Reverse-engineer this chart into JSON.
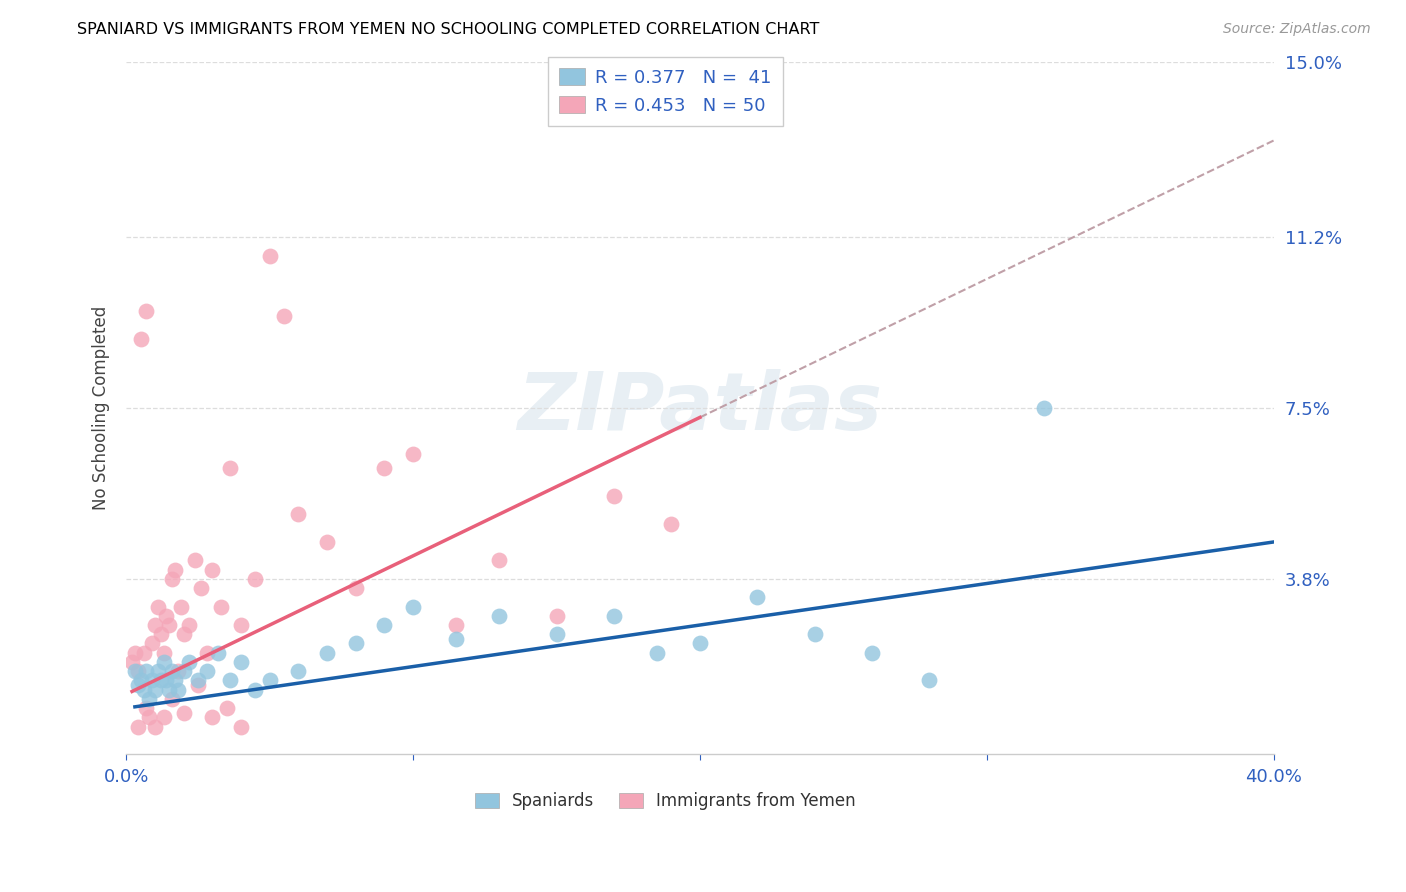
{
  "title": "SPANIARD VS IMMIGRANTS FROM YEMEN NO SCHOOLING COMPLETED CORRELATION CHART",
  "source": "Source: ZipAtlas.com",
  "ylabel": "No Schooling Completed",
  "xlim": [
    0.0,
    0.4
  ],
  "ylim": [
    0.0,
    0.15
  ],
  "ytick_vals": [
    0.038,
    0.075,
    0.112,
    0.15
  ],
  "ytick_labels": [
    "3.8%",
    "7.5%",
    "11.2%",
    "15.0%"
  ],
  "legend1_label": "R = 0.377   N =  41",
  "legend2_label": "R = 0.453   N = 50",
  "legend_bottom_label1": "Spaniards",
  "legend_bottom_label2": "Immigrants from Yemen",
  "blue_color": "#92c5de",
  "pink_color": "#f4a6b8",
  "blue_line_color": "#1a5fa8",
  "pink_line_color": "#e8607a",
  "dash_color": "#c0a0a8",
  "watermark": "ZIPatlas",
  "spaniards_x": [
    0.003,
    0.004,
    0.005,
    0.006,
    0.007,
    0.008,
    0.009,
    0.01,
    0.011,
    0.012,
    0.013,
    0.014,
    0.015,
    0.016,
    0.017,
    0.018,
    0.02,
    0.022,
    0.025,
    0.028,
    0.032,
    0.036,
    0.04,
    0.045,
    0.05,
    0.06,
    0.07,
    0.08,
    0.09,
    0.1,
    0.115,
    0.13,
    0.15,
    0.17,
    0.185,
    0.2,
    0.22,
    0.24,
    0.26,
    0.28,
    0.32
  ],
  "spaniards_y": [
    0.018,
    0.015,
    0.016,
    0.014,
    0.018,
    0.012,
    0.016,
    0.014,
    0.018,
    0.016,
    0.02,
    0.016,
    0.014,
    0.018,
    0.016,
    0.014,
    0.018,
    0.02,
    0.016,
    0.018,
    0.022,
    0.016,
    0.02,
    0.014,
    0.016,
    0.018,
    0.022,
    0.024,
    0.028,
    0.032,
    0.025,
    0.03,
    0.026,
    0.03,
    0.022,
    0.024,
    0.034,
    0.026,
    0.022,
    0.016,
    0.075
  ],
  "yemen_x": [
    0.002,
    0.003,
    0.004,
    0.005,
    0.006,
    0.007,
    0.008,
    0.009,
    0.01,
    0.011,
    0.012,
    0.013,
    0.014,
    0.015,
    0.016,
    0.017,
    0.018,
    0.019,
    0.02,
    0.022,
    0.024,
    0.026,
    0.028,
    0.03,
    0.033,
    0.036,
    0.04,
    0.045,
    0.05,
    0.055,
    0.06,
    0.07,
    0.08,
    0.09,
    0.1,
    0.115,
    0.13,
    0.15,
    0.17,
    0.19,
    0.004,
    0.007,
    0.01,
    0.013,
    0.016,
    0.02,
    0.025,
    0.03,
    0.035,
    0.04
  ],
  "yemen_y": [
    0.02,
    0.022,
    0.018,
    0.09,
    0.022,
    0.096,
    0.008,
    0.024,
    0.028,
    0.032,
    0.026,
    0.022,
    0.03,
    0.028,
    0.038,
    0.04,
    0.018,
    0.032,
    0.026,
    0.028,
    0.042,
    0.036,
    0.022,
    0.04,
    0.032,
    0.062,
    0.028,
    0.038,
    0.108,
    0.095,
    0.052,
    0.046,
    0.036,
    0.062,
    0.065,
    0.028,
    0.042,
    0.03,
    0.056,
    0.05,
    0.006,
    0.01,
    0.006,
    0.008,
    0.012,
    0.009,
    0.015,
    0.008,
    0.01,
    0.006
  ],
  "pink_trendline_xstart": 0.002,
  "pink_trendline_solid_xend": 0.2,
  "pink_trendline_dash_xend": 0.4,
  "blue_trendline_xstart": 0.003,
  "blue_trendline_xend": 0.4,
  "pink_slope": 0.3,
  "pink_intercept": 0.013,
  "blue_slope": 0.09,
  "blue_intercept": 0.01
}
